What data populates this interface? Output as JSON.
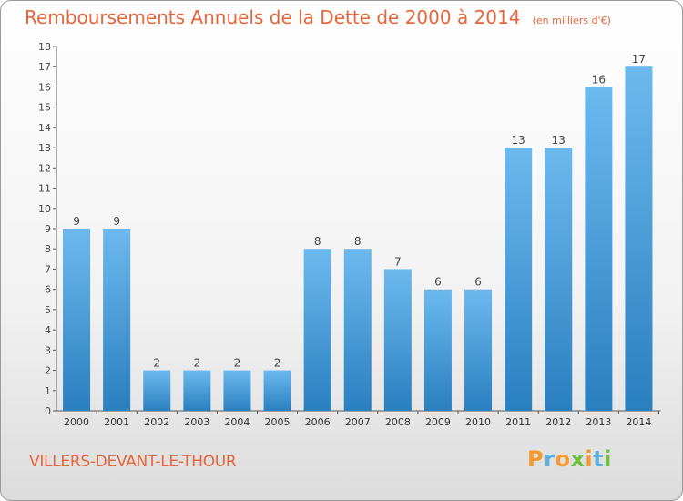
{
  "title": "Remboursements Annuels de la Dette de 2000 à 2014",
  "unit_note": "(en milliers d'€)",
  "place_name": "VILLERS-DEVANT-LE-THOUR",
  "logo_text": "Proxiti",
  "colors": {
    "title": "#e8653a",
    "bar_light": "#6cb9ef",
    "bar_dark": "#2a7fbf",
    "logo_letters": [
      "#f29a2e",
      "#5ab0de",
      "#f29a2e",
      "#6bbf3a",
      "#f29a2e",
      "#5ab0de",
      "#6bbf3a"
    ]
  },
  "chart_data": {
    "type": "bar",
    "title": "Remboursements Annuels de la Dette de 2000 à 2014",
    "categories": [
      "2000",
      "2001",
      "2002",
      "2003",
      "2004",
      "2005",
      "2006",
      "2007",
      "2008",
      "2009",
      "2010",
      "2011",
      "2012",
      "2013",
      "2014"
    ],
    "values": [
      9,
      9,
      2,
      2,
      2,
      2,
      8,
      8,
      7,
      6,
      6,
      13,
      13,
      16,
      17
    ],
    "data_labels": [
      "9",
      "9",
      "2",
      "2",
      "2",
      "2",
      "8",
      "8",
      "7",
      "6",
      "6",
      "13",
      "13",
      "16",
      "17"
    ],
    "y_ticks": [
      "0",
      "1",
      "2",
      "3",
      "4",
      "5",
      "6",
      "7",
      "8",
      "9",
      "10",
      "11",
      "12",
      "13",
      "14",
      "15",
      "16",
      "17",
      "18"
    ],
    "ylim": [
      0,
      18
    ],
    "xlabel": "",
    "ylabel": "",
    "grid": false,
    "legend": "none"
  }
}
